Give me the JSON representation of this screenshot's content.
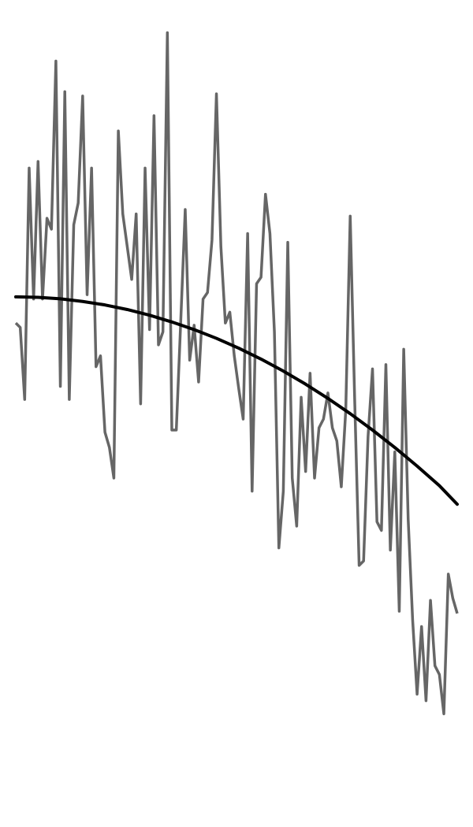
{
  "colors": {
    "background": "#ffffff",
    "noisy_series": "#555555",
    "trend_series": "#000000"
  },
  "chart_data": {
    "type": "line",
    "title": "",
    "xlabel": "",
    "ylabel": "",
    "grid": false,
    "legend": "none",
    "axes_visible": false,
    "xlim": [
      0,
      99
    ],
    "ylim": [
      -1.6,
      1.6
    ],
    "series": [
      {
        "role": "noisy",
        "color": "#555555",
        "x": [
          0,
          1,
          2,
          3,
          4,
          5,
          6,
          7,
          8,
          9,
          10,
          11,
          12,
          13,
          14,
          15,
          16,
          17,
          18,
          19,
          20,
          21,
          22,
          23,
          24,
          25,
          26,
          27,
          28,
          29,
          30,
          31,
          32,
          33,
          34,
          35,
          36,
          37,
          38,
          39,
          40,
          41,
          42,
          43,
          44,
          45,
          46,
          47,
          48,
          49,
          50,
          51,
          52,
          53,
          54,
          55,
          56,
          57,
          58,
          59,
          60,
          61,
          62,
          63,
          64,
          65,
          66,
          67,
          68,
          69,
          70,
          71,
          72,
          73,
          74,
          75,
          76,
          77,
          78,
          79,
          80,
          81,
          82,
          83,
          84,
          85,
          86,
          87,
          88,
          89,
          90,
          91,
          92,
          93,
          94,
          95,
          96,
          97,
          98,
          99
        ],
        "y": [
          0.38,
          0.36,
          0.03,
          1.09,
          0.49,
          1.12,
          0.49,
          0.86,
          0.81,
          1.58,
          0.09,
          1.44,
          0.03,
          0.83,
          0.93,
          1.42,
          0.51,
          1.09,
          0.18,
          0.23,
          -0.12,
          -0.19,
          -0.33,
          1.26,
          0.88,
          0.73,
          0.58,
          0.88,
          0.01,
          1.09,
          0.35,
          1.33,
          0.28,
          0.34,
          1.71,
          -0.11,
          -0.11,
          0.39,
          0.9,
          0.21,
          0.37,
          0.11,
          0.49,
          0.52,
          0.76,
          1.43,
          0.73,
          0.38,
          0.43,
          0.23,
          0.08,
          -0.06,
          0.79,
          -0.39,
          0.56,
          0.59,
          0.97,
          0.79,
          0.34,
          -0.65,
          -0.39,
          0.75,
          -0.33,
          -0.55,
          0.04,
          -0.3,
          0.15,
          -0.33,
          -0.1,
          -0.06,
          0.06,
          -0.1,
          -0.16,
          -0.37,
          -0.02,
          0.87,
          0.03,
          -0.73,
          -0.71,
          -0.14,
          0.17,
          -0.53,
          -0.57,
          0.19,
          -0.66,
          -0.21,
          -0.94,
          0.26,
          -0.52,
          -0.98,
          -1.32,
          -1.01,
          -1.35,
          -0.89,
          -1.19,
          -1.23,
          -1.41,
          -0.77,
          -0.88,
          -0.95
        ]
      },
      {
        "role": "trend",
        "color": "#000000",
        "x": [
          0,
          5,
          10,
          15,
          20,
          25,
          30,
          35,
          40,
          45,
          50,
          55,
          60,
          65,
          70,
          75,
          80,
          85,
          90,
          95,
          99
        ],
        "y": [
          0.5,
          0.498,
          0.491,
          0.479,
          0.463,
          0.442,
          0.416,
          0.385,
          0.35,
          0.31,
          0.265,
          0.215,
          0.16,
          0.1,
          0.035,
          -0.035,
          -0.11,
          -0.19,
          -0.275,
          -0.365,
          -0.45
        ]
      }
    ]
  }
}
